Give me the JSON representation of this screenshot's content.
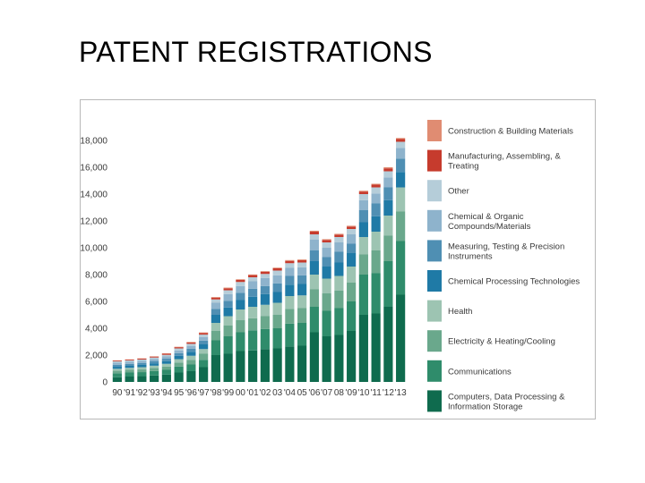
{
  "page": {
    "title": "PATENT REGISTRATIONS"
  },
  "chart_data": {
    "type": "bar",
    "stacked": true,
    "title": "",
    "xlabel": "",
    "ylabel": "",
    "ylim": [
      0,
      18000
    ],
    "y_ticks": [
      "0",
      "2,000",
      "4,000",
      "6,000",
      "8,000",
      "10,000",
      "12,000",
      "14,000",
      "16,000",
      "18,000"
    ],
    "y_tick_values": [
      0,
      2000,
      4000,
      6000,
      8000,
      10000,
      12000,
      14000,
      16000,
      18000
    ],
    "grid": false,
    "legend_position": "right",
    "categories": [
      "90",
      "'91",
      "'92",
      "'93",
      "'94",
      "95",
      "'96",
      "'97",
      "'98",
      "'99",
      "00",
      "'01",
      "'02",
      "03",
      "'04",
      "05",
      "'06",
      "'07",
      "08",
      "'09",
      "'10",
      "'11",
      "'12",
      "'13"
    ],
    "series": [
      {
        "name": "Computers, Data Processing & Information Storage",
        "color": "#0f6b4e",
        "values": [
          350,
          400,
          430,
          480,
          550,
          700,
          800,
          1100,
          2000,
          2100,
          2300,
          2350,
          2450,
          2500,
          2650,
          2700,
          3700,
          3400,
          3500,
          3800,
          5000,
          5100,
          5600,
          6500
        ]
      },
      {
        "name": "Communications",
        "color": "#2f8c6b",
        "values": [
          300,
          300,
          300,
          330,
          350,
          450,
          500,
          550,
          1100,
          1300,
          1400,
          1500,
          1500,
          1500,
          1700,
          1700,
          1900,
          1900,
          2000,
          2200,
          3000,
          3000,
          3400,
          4000
        ]
      },
      {
        "name": "Electricity & Heating/Cooling",
        "color": "#6aa88c",
        "values": [
          180,
          200,
          200,
          220,
          250,
          300,
          350,
          450,
          700,
          800,
          900,
          900,
          950,
          1000,
          1100,
          1100,
          1300,
          1300,
          1300,
          1400,
          1500,
          1700,
          1900,
          2200
        ]
      },
      {
        "name": "Health",
        "color": "#9dc4b2",
        "values": [
          150,
          150,
          170,
          180,
          200,
          250,
          300,
          350,
          600,
          700,
          800,
          850,
          850,
          900,
          950,
          950,
          1100,
          1100,
          1100,
          1200,
          1300,
          1400,
          1500,
          1800
        ]
      },
      {
        "name": "Chemical Processing Technologies",
        "color": "#1f7aa6",
        "values": [
          150,
          150,
          170,
          180,
          200,
          250,
          300,
          350,
          600,
          650,
          700,
          750,
          800,
          800,
          850,
          850,
          1000,
          900,
          1000,
          1000,
          1100,
          1150,
          1150,
          1150
        ]
      },
      {
        "name": "Measuring, Testing & Precision Instruments",
        "color": "#4f8fb3",
        "values": [
          150,
          150,
          150,
          170,
          180,
          200,
          220,
          280,
          450,
          500,
          550,
          600,
          600,
          650,
          650,
          650,
          800,
          700,
          800,
          700,
          900,
          950,
          950,
          1000
        ]
      },
      {
        "name": "Chemical & Organic Compounds/Materials",
        "color": "#8eb3cc",
        "values": [
          150,
          150,
          150,
          160,
          170,
          200,
          220,
          270,
          450,
          500,
          500,
          550,
          600,
          600,
          600,
          600,
          800,
          700,
          700,
          700,
          750,
          750,
          750,
          800
        ]
      },
      {
        "name": "Other",
        "color": "#b5cdd9",
        "values": [
          100,
          100,
          100,
          100,
          120,
          150,
          150,
          180,
          250,
          280,
          300,
          300,
          300,
          350,
          350,
          350,
          400,
          400,
          400,
          400,
          450,
          450,
          450,
          450
        ]
      },
      {
        "name": "Manufacturing, Assembling, & Treating",
        "color": "#c63b2d",
        "values": [
          60,
          60,
          70,
          70,
          80,
          90,
          100,
          120,
          130,
          150,
          150,
          160,
          160,
          170,
          170,
          170,
          200,
          180,
          180,
          180,
          190,
          200,
          220,
          200
        ]
      },
      {
        "name": "Construction & Building Materials",
        "color": "#e08c72",
        "values": [
          20,
          20,
          20,
          20,
          30,
          30,
          40,
          40,
          50,
          50,
          50,
          50,
          50,
          50,
          60,
          60,
          70,
          60,
          60,
          60,
          60,
          70,
          80,
          80
        ]
      }
    ]
  }
}
